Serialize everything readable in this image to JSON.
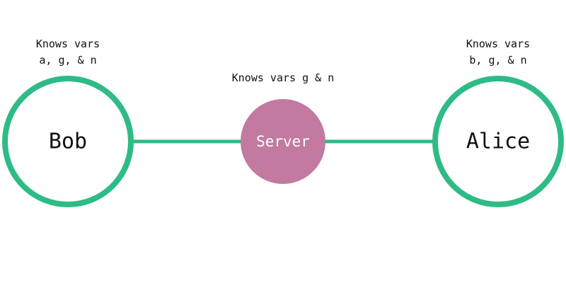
{
  "colors": {
    "accent": "#2ebb86",
    "server_fill": "#c27aa0",
    "text": "#111111",
    "server_text": "#ffffff",
    "background": "#ffffff"
  },
  "nodes": {
    "bob": {
      "label": "Bob",
      "knows_line1": "Knows vars",
      "knows_line2": "a, g, & n"
    },
    "server": {
      "label": "Server",
      "knows": "Knows vars g & n"
    },
    "alice": {
      "label": "Alice",
      "knows_line1": "Knows vars",
      "knows_line2": "b, g, & n"
    }
  }
}
